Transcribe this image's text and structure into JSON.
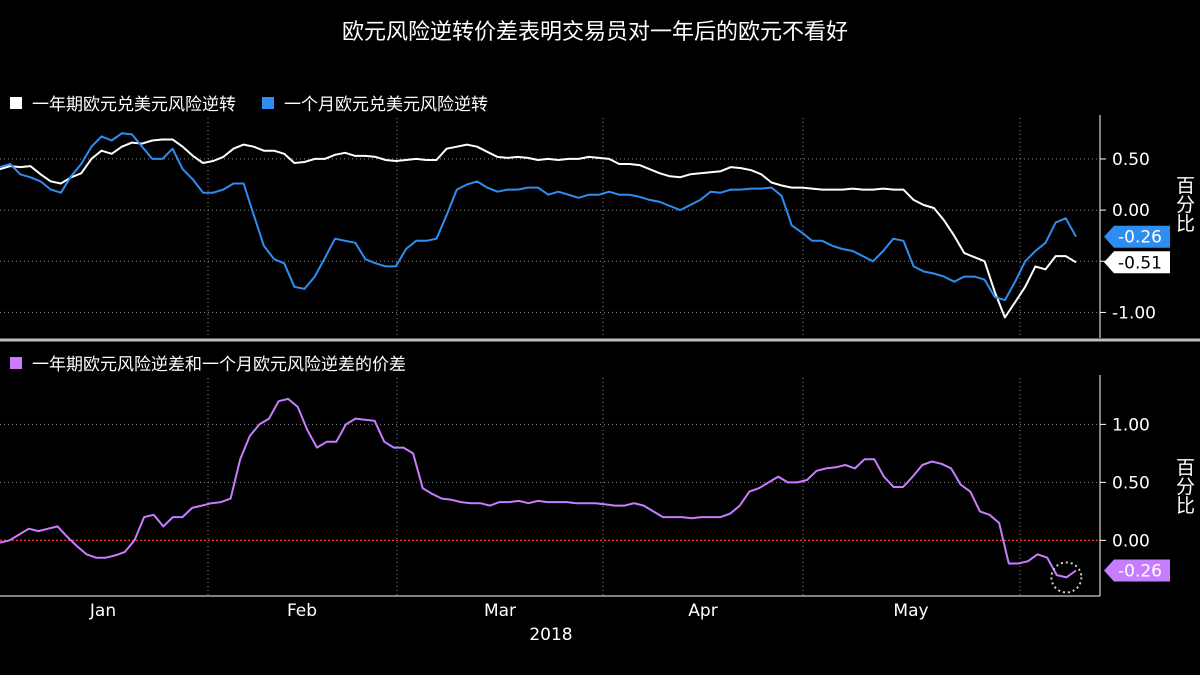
{
  "chart_data": [
    {
      "type": "line",
      "title": "欧元风险逆转价差表明交易员对一年后的欧元不看好",
      "ylabel": "百分比",
      "ylim": [
        -1.25,
        0.9
      ],
      "yticks": [
        -1.0,
        -0.5,
        0.0,
        0.5
      ],
      "ytick_labels": [
        "-1.00",
        "-0.50",
        "0.00",
        "0.50"
      ],
      "x_tick_labels": [
        "Jan",
        "Feb",
        "Mar",
        "Apr",
        "May"
      ],
      "x_year_label": "2018",
      "legend_position": "top-left",
      "grid": true,
      "series": [
        {
          "name": "一年期欧元兑美元风险逆转",
          "color": "#ffffff",
          "last_value_label": "-0.51",
          "values": [
            0.4,
            0.43,
            0.42,
            0.43,
            0.35,
            0.28,
            0.26,
            0.32,
            0.36,
            0.5,
            0.58,
            0.55,
            0.62,
            0.66,
            0.65,
            0.68,
            0.69,
            0.69,
            0.62,
            0.53,
            0.46,
            0.48,
            0.52,
            0.6,
            0.64,
            0.62,
            0.58,
            0.58,
            0.55,
            0.46,
            0.47,
            0.5,
            0.5,
            0.54,
            0.56,
            0.53,
            0.53,
            0.52,
            0.49,
            0.48,
            0.49,
            0.5,
            0.49,
            0.49,
            0.6,
            0.62,
            0.64,
            0.62,
            0.57,
            0.52,
            0.51,
            0.52,
            0.51,
            0.49,
            0.5,
            0.49,
            0.5,
            0.5,
            0.52,
            0.51,
            0.5,
            0.45,
            0.45,
            0.44,
            0.4,
            0.36,
            0.33,
            0.32,
            0.35,
            0.36,
            0.37,
            0.38,
            0.42,
            0.41,
            0.39,
            0.35,
            0.27,
            0.24,
            0.22,
            0.22,
            0.21,
            0.2,
            0.2,
            0.2,
            0.21,
            0.2,
            0.2,
            0.21,
            0.2,
            0.2,
            0.1,
            0.05,
            0.02,
            -0.1,
            -0.25,
            -0.42,
            -0.46,
            -0.5,
            -0.8,
            -1.05,
            -0.9,
            -0.75,
            -0.55,
            -0.58,
            -0.45,
            -0.45,
            -0.51
          ]
        },
        {
          "name": "一个月欧元兑美元风险逆转",
          "color": "#2e8ef0",
          "last_value_label": "-0.26",
          "values": [
            0.42,
            0.45,
            0.35,
            0.32,
            0.28,
            0.2,
            0.17,
            0.33,
            0.45,
            0.62,
            0.72,
            0.68,
            0.75,
            0.74,
            0.62,
            0.5,
            0.5,
            0.6,
            0.4,
            0.3,
            0.17,
            0.17,
            0.2,
            0.26,
            0.26,
            -0.05,
            -0.35,
            -0.48,
            -0.52,
            -0.75,
            -0.77,
            -0.65,
            -0.47,
            -0.28,
            -0.3,
            -0.32,
            -0.48,
            -0.52,
            -0.55,
            -0.55,
            -0.38,
            -0.3,
            -0.3,
            -0.28,
            -0.05,
            0.2,
            0.25,
            0.28,
            0.22,
            0.18,
            0.2,
            0.2,
            0.22,
            0.22,
            0.15,
            0.18,
            0.15,
            0.12,
            0.15,
            0.15,
            0.18,
            0.15,
            0.15,
            0.13,
            0.1,
            0.08,
            0.04,
            0.0,
            0.05,
            0.1,
            0.18,
            0.17,
            0.2,
            0.2,
            0.21,
            0.21,
            0.22,
            0.14,
            -0.15,
            -0.22,
            -0.3,
            -0.3,
            -0.35,
            -0.38,
            -0.4,
            -0.45,
            -0.5,
            -0.4,
            -0.28,
            -0.3,
            -0.55,
            -0.6,
            -0.62,
            -0.65,
            -0.7,
            -0.65,
            -0.65,
            -0.68,
            -0.85,
            -0.88,
            -0.7,
            -0.5,
            -0.4,
            -0.32,
            -0.12,
            -0.08,
            -0.26
          ]
        }
      ]
    },
    {
      "type": "line",
      "ylabel": "百分比",
      "ylim": [
        -0.48,
        1.4
      ],
      "yticks": [
        0.0,
        0.5,
        1.0
      ],
      "ytick_labels": [
        "0.00",
        "0.50",
        "1.00"
      ],
      "reference_line": {
        "y": 0.0,
        "color": "#ff3030",
        "style": "dotted"
      },
      "legend_position": "top-left",
      "grid": true,
      "series": [
        {
          "name": "一年期欧元风险逆差和一个月欧元风险逆差的价差",
          "color": "#c77dff",
          "last_value_label": "-0.26",
          "values": [
            -0.02,
            0.0,
            0.05,
            0.1,
            0.08,
            0.1,
            0.12,
            0.03,
            -0.05,
            -0.12,
            -0.15,
            -0.15,
            -0.13,
            -0.1,
            0.0,
            0.2,
            0.22,
            0.12,
            0.2,
            0.2,
            0.28,
            0.3,
            0.32,
            0.33,
            0.36,
            0.7,
            0.9,
            1.0,
            1.05,
            1.2,
            1.22,
            1.15,
            0.95,
            0.8,
            0.85,
            0.85,
            1.0,
            1.05,
            1.04,
            1.03,
            0.85,
            0.8,
            0.8,
            0.75,
            0.45,
            0.4,
            0.36,
            0.35,
            0.33,
            0.32,
            0.32,
            0.3,
            0.33,
            0.33,
            0.34,
            0.32,
            0.34,
            0.33,
            0.33,
            0.33,
            0.32,
            0.32,
            0.32,
            0.31,
            0.3,
            0.3,
            0.32,
            0.3,
            0.25,
            0.2,
            0.2,
            0.2,
            0.19,
            0.2,
            0.2,
            0.2,
            0.23,
            0.3,
            0.42,
            0.45,
            0.5,
            0.55,
            0.5,
            0.5,
            0.52,
            0.6,
            0.62,
            0.63,
            0.65,
            0.62,
            0.7,
            0.7,
            0.55,
            0.46,
            0.46,
            0.55,
            0.65,
            0.68,
            0.66,
            0.62,
            0.48,
            0.42,
            0.25,
            0.22,
            0.15,
            -0.2,
            -0.2,
            -0.18,
            -0.12,
            -0.15,
            -0.3,
            -0.32,
            -0.26
          ]
        }
      ]
    }
  ]
}
